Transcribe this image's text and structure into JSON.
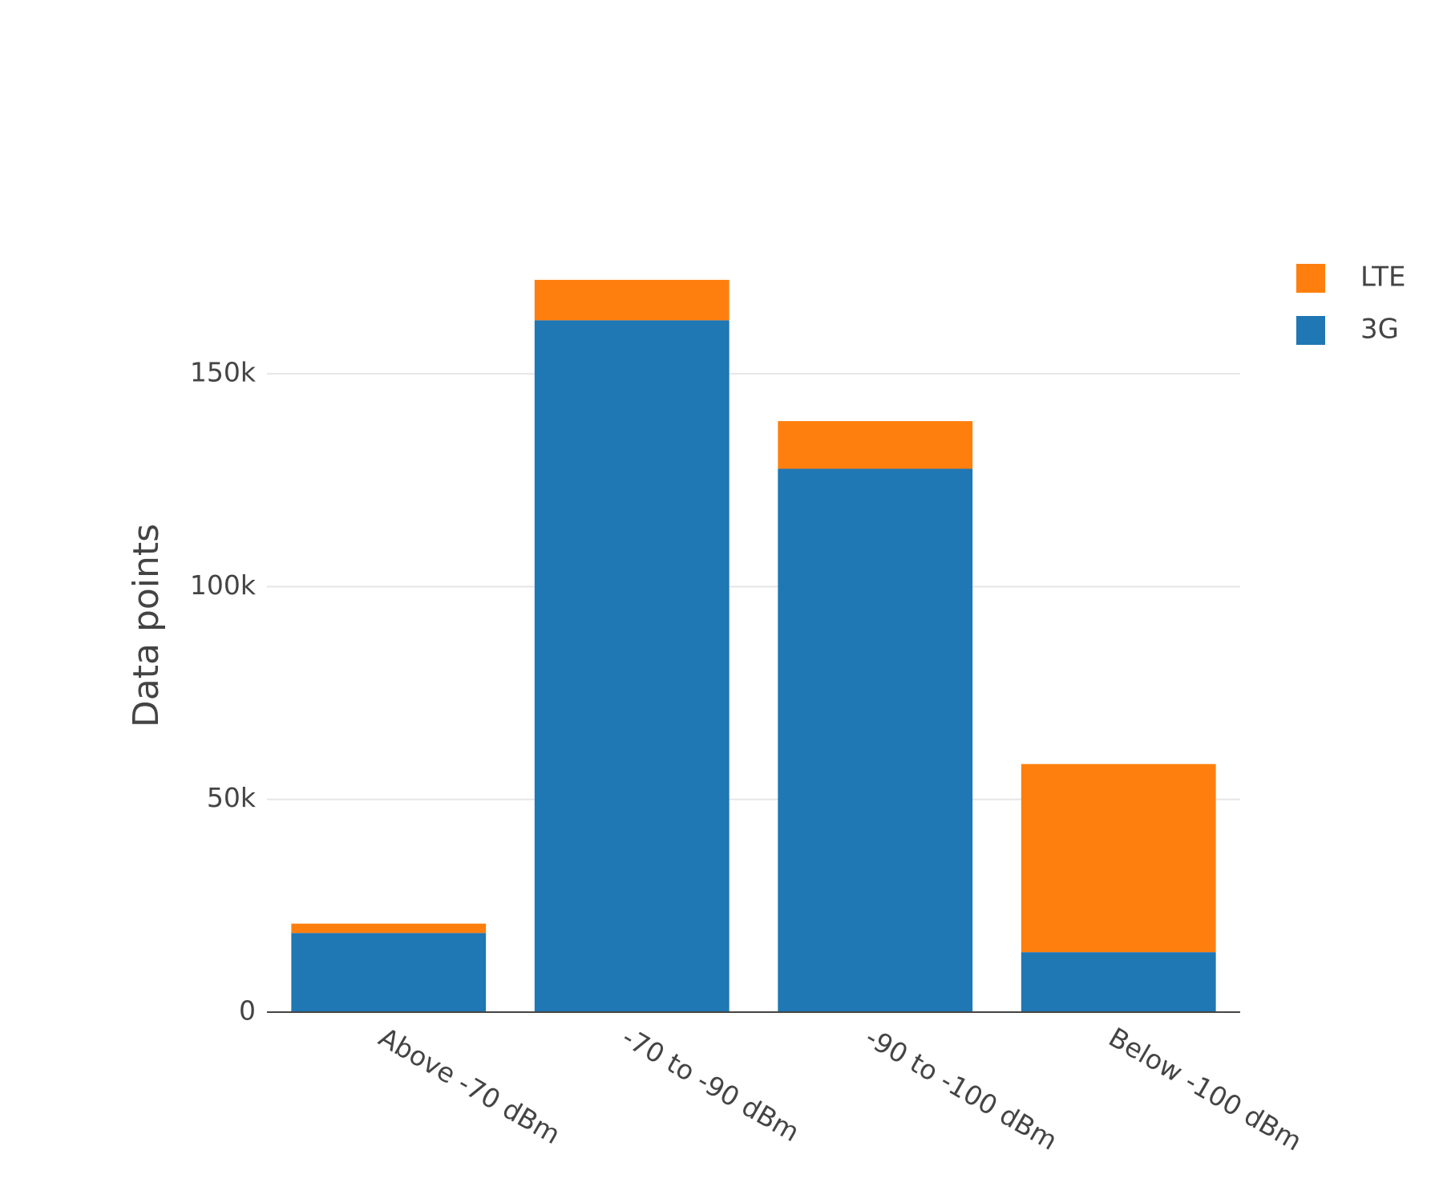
{
  "chart_data": {
    "type": "stacked_bar",
    "y_label": "Data points",
    "categories": [
      "Above -70 dBm",
      "-70 to -90 dBm",
      "-90 to -100 dBm",
      "Below -100 dBm"
    ],
    "series": [
      {
        "name": "3G",
        "color": "#1f77b4",
        "values": [
          18600,
          162600,
          127700,
          14100
        ]
      },
      {
        "name": "LTE",
        "color": "#ff7f0e",
        "values": [
          2200,
          9500,
          11200,
          44200
        ]
      }
    ],
    "ylim": [
      0,
      180000
    ],
    "yticks": [
      0,
      {
        "value": 50000,
        "label": "50k"
      },
      {
        "value": 100000,
        "label": "100k"
      },
      {
        "value": 150000,
        "label": "150k"
      }
    ],
    "grid": true,
    "legend": "top-right"
  }
}
